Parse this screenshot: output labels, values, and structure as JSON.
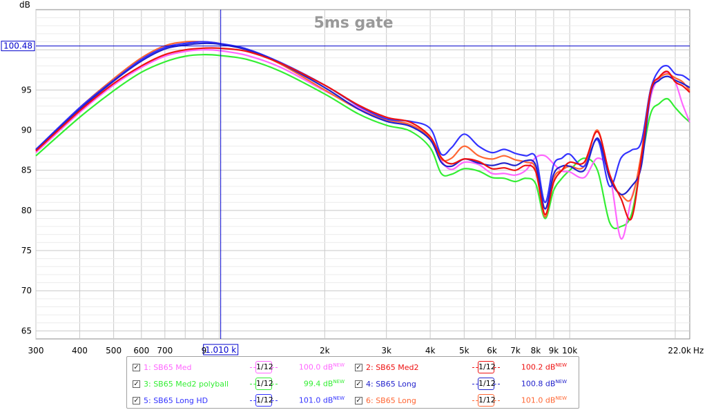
{
  "chart_data": {
    "type": "line",
    "title": "5ms gate",
    "ylabel": "dB",
    "xunit": "Hz",
    "xscale": "log",
    "xlim": [
      300,
      22000
    ],
    "ylim": [
      64,
      105
    ],
    "grid": true,
    "xtick_labels": [
      "300",
      "400",
      "500",
      "600",
      "700",
      "9",
      "2k",
      "3k",
      "4k",
      "5k",
      "6k",
      "7k",
      "8k",
      "9k",
      "10k",
      "22.0k"
    ],
    "yticks": [
      65,
      70,
      75,
      80,
      85,
      90,
      95
    ],
    "cursor": {
      "freq_label": "1.010 k",
      "level_label": "100.48",
      "freq": 1010,
      "level": 100.48
    },
    "series": [
      {
        "name": "1: SB65 Med",
        "color": "#ff66ff",
        "x": [
          300,
          400,
          500,
          600,
          700,
          800,
          900,
          1000,
          1200,
          1500,
          2000,
          2500,
          3000,
          3500,
          4000,
          4300,
          4600,
          5000,
          5500,
          6000,
          6500,
          7000,
          7500,
          8000,
          8500,
          9000,
          9500,
          10000,
          11000,
          12000,
          13000,
          14000,
          15000,
          16000,
          17000,
          18000,
          19000,
          20000,
          21000,
          22000
        ],
        "y": [
          87.2,
          92.2,
          95.6,
          97.8,
          99.2,
          99.8,
          100.0,
          99.9,
          99.3,
          97.8,
          94.9,
          92.8,
          91.3,
          90.7,
          89.0,
          86.2,
          85.1,
          86.0,
          85.7,
          84.6,
          84.6,
          84.4,
          85.0,
          86.6,
          86.8,
          85.8,
          84.9,
          84.8,
          84.1,
          86.5,
          84.5,
          76.5,
          81.5,
          86.0,
          94.0,
          96.5,
          97.2,
          96.0,
          93.2,
          91.0
        ]
      },
      {
        "name": "2: SB65 Med2",
        "color": "#ee1111",
        "x": [
          300,
          400,
          500,
          600,
          700,
          800,
          900,
          1000,
          1200,
          1500,
          2000,
          2500,
          3000,
          3500,
          4000,
          4300,
          4600,
          5000,
          5500,
          6000,
          6500,
          7000,
          7500,
          8000,
          8500,
          9000,
          9500,
          10000,
          11000,
          12000,
          13000,
          14000,
          15000,
          16000,
          17000,
          18000,
          19000,
          20000,
          21000,
          22000
        ],
        "y": [
          87.4,
          92.4,
          95.8,
          98.0,
          99.4,
          100.0,
          100.2,
          100.2,
          99.8,
          98.3,
          95.6,
          93.1,
          91.6,
          91.0,
          89.2,
          86.6,
          85.8,
          86.4,
          86.1,
          85.2,
          85.3,
          85.0,
          85.6,
          84.8,
          79.5,
          83.5,
          85.0,
          86.0,
          86.0,
          89.8,
          84.5,
          81.5,
          79.0,
          86.5,
          94.8,
          96.6,
          97.3,
          96.0,
          95.5,
          94.7
        ]
      },
      {
        "name": "3: SB65 Med2 polyball",
        "color": "#33ee33",
        "x": [
          300,
          400,
          500,
          600,
          700,
          800,
          900,
          1000,
          1200,
          1500,
          2000,
          2500,
          3000,
          3500,
          4000,
          4300,
          4600,
          5000,
          5500,
          6000,
          6500,
          7000,
          7500,
          8000,
          8500,
          9000,
          9500,
          10000,
          11000,
          12000,
          13000,
          14000,
          15000,
          16000,
          17000,
          18000,
          19000,
          20000,
          21000,
          22000
        ],
        "y": [
          86.8,
          91.6,
          94.9,
          97.2,
          98.5,
          99.2,
          99.4,
          99.3,
          98.8,
          97.3,
          94.5,
          92.0,
          90.6,
          89.9,
          87.8,
          84.6,
          84.5,
          85.2,
          84.9,
          84.1,
          84.0,
          83.6,
          84.0,
          83.3,
          79.0,
          82.5,
          84.0,
          85.0,
          86.5,
          85.0,
          78.5,
          78.0,
          79.5,
          86.0,
          92.0,
          93.3,
          93.9,
          92.8,
          91.8,
          91.0
        ]
      },
      {
        "name": "4: SB65 Long",
        "color": "#2222cc",
        "x": [
          300,
          400,
          500,
          600,
          700,
          800,
          900,
          1000,
          1200,
          1500,
          2000,
          2500,
          3000,
          3500,
          4000,
          4300,
          4600,
          5000,
          5500,
          6000,
          6500,
          7000,
          7500,
          8000,
          8500,
          9000,
          9500,
          10000,
          11000,
          12000,
          13000,
          14000,
          15000,
          16000,
          17000,
          18000,
          19000,
          20000,
          21000,
          22000
        ],
        "y": [
          87.5,
          92.6,
          96.1,
          98.6,
          100.1,
          100.6,
          100.8,
          100.7,
          100.0,
          98.3,
          95.3,
          92.6,
          91.1,
          90.5,
          88.8,
          86.0,
          85.5,
          86.4,
          85.9,
          85.6,
          85.9,
          85.6,
          86.2,
          85.6,
          80.2,
          84.5,
          85.5,
          85.5,
          85.0,
          89.0,
          84.0,
          82.0,
          83.0,
          85.5,
          94.5,
          96.2,
          96.7,
          96.2,
          95.8,
          95.3
        ]
      },
      {
        "name": "5: SB65 Long HD",
        "color": "#3333ff",
        "x": [
          300,
          400,
          500,
          600,
          700,
          800,
          900,
          1000,
          1200,
          1500,
          2000,
          2500,
          3000,
          3500,
          4000,
          4300,
          4600,
          5000,
          5500,
          6000,
          6500,
          7000,
          7500,
          8000,
          8500,
          9000,
          9500,
          10000,
          11000,
          12000,
          13000,
          14000,
          15000,
          16000,
          17000,
          18000,
          19000,
          20000,
          21000,
          22000
        ],
        "y": [
          87.6,
          92.8,
          96.2,
          98.8,
          100.3,
          100.8,
          101.0,
          100.8,
          100.1,
          98.4,
          95.6,
          93.0,
          91.4,
          91.1,
          90.2,
          87.0,
          87.8,
          89.5,
          88.0,
          87.2,
          87.6,
          87.1,
          86.8,
          86.6,
          81.0,
          85.7,
          86.5,
          87.0,
          85.5,
          88.8,
          83.0,
          86.5,
          87.5,
          88.5,
          95.0,
          97.5,
          98.0,
          97.0,
          96.8,
          96.2
        ]
      },
      {
        "name": "6: SB65 Long",
        "color": "#ff6633",
        "x": [
          300,
          400,
          500,
          600,
          700,
          800,
          900,
          1000,
          1200,
          1500,
          2000,
          2500,
          3000,
          3500,
          4000,
          4300,
          4600,
          5000,
          5500,
          6000,
          6500,
          7000,
          7500,
          8000,
          8500,
          9000,
          9500,
          10000,
          11000,
          12000,
          13000,
          14000,
          15000,
          16000,
          17000,
          18000,
          19000,
          20000,
          21000,
          22000
        ],
        "y": [
          87.5,
          92.8,
          96.4,
          99.0,
          100.5,
          101.0,
          101.0,
          100.8,
          100.0,
          98.2,
          95.0,
          92.6,
          91.3,
          90.7,
          89.0,
          86.4,
          86.5,
          88.0,
          86.8,
          86.4,
          86.8,
          86.3,
          86.0,
          85.2,
          79.2,
          84.0,
          85.0,
          85.5,
          85.5,
          90.0,
          84.0,
          82.0,
          81.5,
          87.0,
          95.0,
          96.5,
          97.0,
          96.5,
          96.0,
          94.9
        ]
      }
    ]
  },
  "legend": [
    {
      "label": "1: SB65 Med",
      "check": "✓",
      "smoothing": "1/12",
      "level": "100.0 dB",
      "badge": "NEW",
      "color": "#ff66ff"
    },
    {
      "label": "2: SB65 Med2",
      "check": "✓",
      "smoothing": "1/12",
      "level": "100.2 dB",
      "badge": "NEW",
      "color": "#ee1111"
    },
    {
      "label": "3: SB65 Med2 polyball",
      "check": "✓",
      "smoothing": "1/12",
      "level": "99.4 dB",
      "badge": "NEW",
      "color": "#33ee33"
    },
    {
      "label": "4: SB65 Long",
      "check": "✓",
      "smoothing": "1/12",
      "level": "100.8 dB",
      "badge": "NEW",
      "color": "#2222cc"
    },
    {
      "label": "5: SB65 Long HD",
      "check": "✓",
      "smoothing": "1/12",
      "level": "101.0 dB",
      "badge": "NEW",
      "color": "#3333ff"
    },
    {
      "label": "6: SB65 Long",
      "check": "✓",
      "smoothing": "1/12",
      "level": "101.0 dB",
      "badge": "NEW",
      "color": "#ff6633"
    }
  ]
}
